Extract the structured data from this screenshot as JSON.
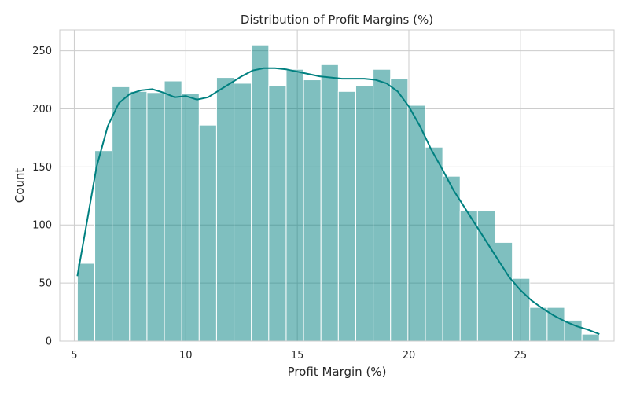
{
  "chart_data": {
    "type": "bar",
    "title": "Distribution of Profit Margins (%)",
    "xlabel": "Profit Margin (%)",
    "ylabel": "Count",
    "xlim": [
      4.35,
      29.2
    ],
    "ylim": [
      0,
      268
    ],
    "xticks": [
      5,
      10,
      15,
      20,
      25
    ],
    "yticks": [
      0,
      50,
      100,
      150,
      200,
      250
    ],
    "grid": true,
    "bin_edges": [
      5.14,
      5.92,
      6.7,
      7.48,
      8.26,
      9.04,
      9.82,
      10.6,
      11.38,
      12.16,
      12.94,
      13.72,
      14.5,
      15.28,
      16.06,
      16.84,
      17.62,
      18.4,
      19.18,
      19.96,
      20.74,
      21.52,
      22.3,
      23.08,
      23.86,
      24.64,
      25.42,
      26.2,
      26.98,
      27.76,
      28.54
    ],
    "counts": [
      67,
      164,
      219,
      215,
      214,
      224,
      213,
      186,
      227,
      222,
      255,
      220,
      234,
      225,
      238,
      215,
      220,
      234,
      226,
      203,
      167,
      142,
      112,
      112,
      85,
      54,
      29,
      29,
      18,
      6
    ],
    "kde": {
      "x": [
        5.14,
        5.5,
        6.0,
        6.5,
        7.0,
        7.5,
        8.0,
        8.5,
        9.0,
        9.5,
        10.0,
        10.5,
        11.0,
        11.5,
        12.0,
        12.5,
        13.0,
        13.5,
        14.0,
        14.5,
        15.0,
        15.5,
        16.0,
        16.5,
        17.0,
        17.5,
        18.0,
        18.5,
        19.0,
        19.5,
        20.0,
        20.5,
        21.0,
        21.5,
        22.0,
        22.5,
        23.0,
        23.5,
        24.0,
        24.5,
        25.0,
        25.5,
        26.0,
        26.5,
        27.0,
        27.5,
        28.0,
        28.54
      ],
      "y": [
        56,
        95,
        150,
        185,
        205,
        213,
        216,
        217,
        214,
        210,
        211,
        208,
        210,
        216,
        222,
        228,
        233,
        235,
        235,
        234,
        232,
        230,
        228,
        227,
        226,
        226,
        226,
        225,
        222,
        215,
        202,
        185,
        165,
        148,
        130,
        115,
        100,
        85,
        70,
        55,
        44,
        35,
        28,
        22,
        17,
        13,
        10,
        6
      ]
    }
  }
}
